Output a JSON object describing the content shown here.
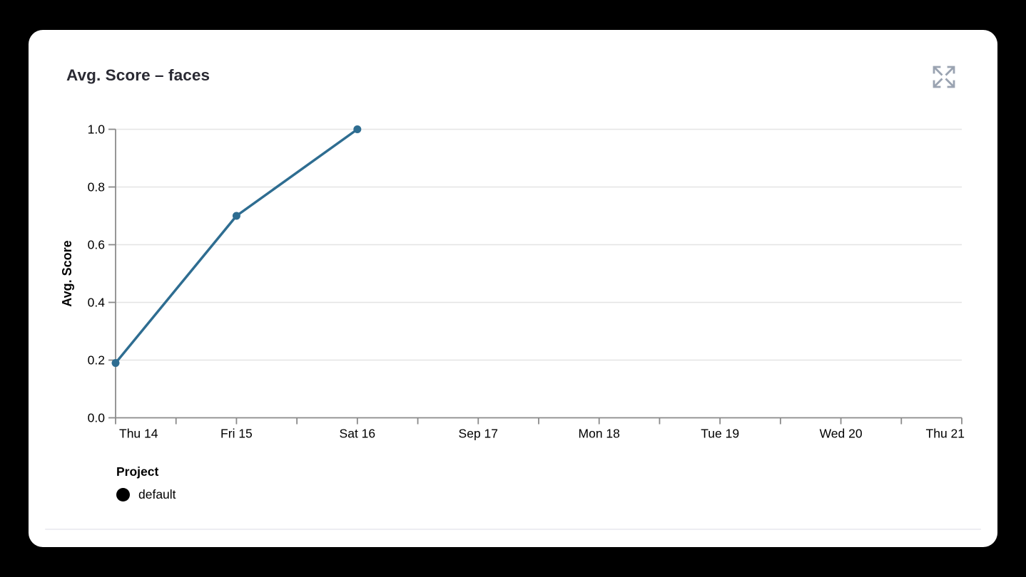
{
  "panel": {
    "title": "Avg. Score – faces",
    "expand_icon": "expand-arrows-icon"
  },
  "chart_data": {
    "type": "line",
    "title": "Avg. Score – faces",
    "xlabel": "",
    "ylabel": "Avg. Score",
    "ylim": [
      0.0,
      1.0
    ],
    "y_ticks": [
      0.0,
      0.2,
      0.4,
      0.6,
      0.8,
      1.0
    ],
    "y_tick_labels": [
      "0.0",
      "0.2",
      "0.4",
      "0.6",
      "0.8",
      "1.0"
    ],
    "x_tick_labels": [
      "Thu 14",
      "Fri 15",
      "Sat 16",
      "Sep 17",
      "Mon 18",
      "Tue 19",
      "Wed 20",
      "Thu 21"
    ],
    "x_domain_days": 7,
    "minor_ticks_per_day": 2,
    "grid": "horizontal",
    "series": [
      {
        "name": "default",
        "x_day_index": [
          0,
          1,
          2
        ],
        "values": [
          0.19,
          0.7,
          1.0
        ]
      }
    ],
    "legend": {
      "title": "Project",
      "position": "bottom-left",
      "items": [
        {
          "label": "default",
          "swatch_color": "#000000"
        }
      ]
    }
  },
  "colors": {
    "background": "#000000",
    "card": "#ffffff",
    "title_text": "#2a2a33",
    "line": "#2e6d91",
    "marker": "#2e6d91",
    "axis": "#8a8a8a",
    "grid": "#e4e4e4",
    "tick_label": "#000000",
    "expand_icon": "#9aa3b1",
    "divider": "#ededf2"
  }
}
